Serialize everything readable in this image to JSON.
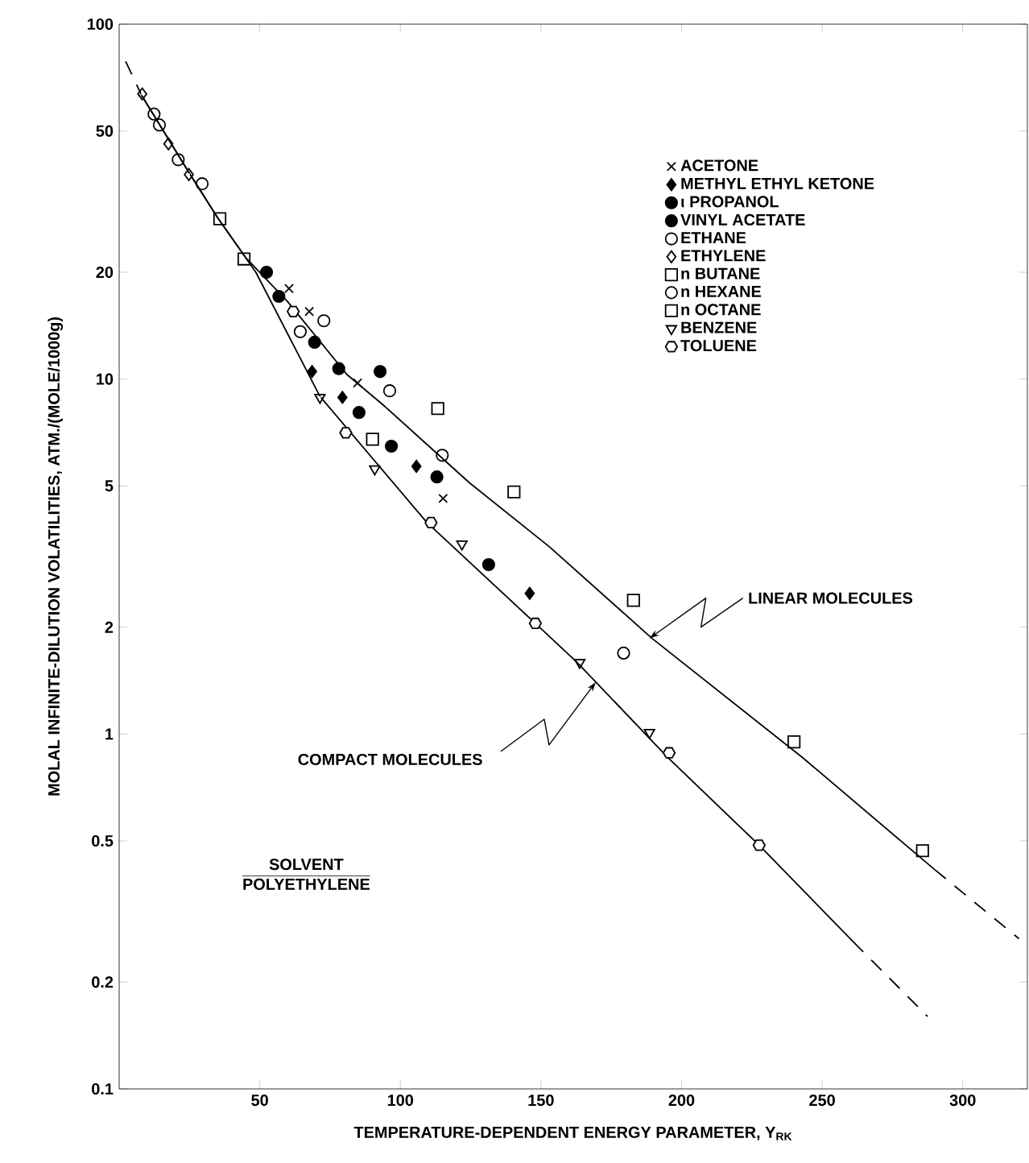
{
  "chart_data": {
    "type": "scatter",
    "xlabel": "TEMPERATURE-DEPENDENT ENERGY PARAMETER, Y$_{RK}$",
    "ylabel": "MOLAL INFINITE-DILUTION VOLATILITIES, ATM./(MOLE/1000g)",
    "log": "y",
    "xlim": [
      0,
      323
    ],
    "ylim": [
      0.1,
      100
    ],
    "xticks": [
      50,
      100,
      150,
      200,
      250,
      300
    ],
    "yticks": [
      0.1,
      0.2,
      0.5,
      1,
      2,
      5,
      10,
      20,
      50,
      100
    ],
    "legend": "top right",
    "series": [
      {
        "name": "ACETONE",
        "color": "#000000",
        "marker": "cross",
        "x": [
          60.4,
          67.6,
          84.8,
          115.2
        ],
        "values": [
          18,
          15.5,
          9.75,
          4.61
        ]
      },
      {
        "name": "METHYL ETHYL KETONE",
        "color": "#000000",
        "marker": "diamond",
        "x": [
          68.6,
          79.4,
          105.7,
          146
        ],
        "values": [
          10.5,
          8.88,
          5.68,
          2.49
        ]
      },
      {
        "name": "ι PROPANOL",
        "color": "#000000",
        "marker": "circle",
        "x": [
          92.8,
          113
        ],
        "values": [
          10.5,
          5.3
        ]
      },
      {
        "name": "VINYL ACETATE",
        "color": "#000000",
        "marker": "circle",
        "x": [
          52.4,
          56.8,
          69.5,
          78.1,
          85.3,
          96.8,
          131.4
        ],
        "values": [
          20,
          17.1,
          12.7,
          10.7,
          8.05,
          6.47,
          3.0
        ]
      },
      {
        "name": "ETHANE",
        "color": "#000000",
        "marker": "circle",
        "x": [
          12.4,
          14.3,
          21,
          29.5,
          64.4
        ],
        "values": [
          55.8,
          52,
          41.5,
          35.5,
          13.6
        ]
      },
      {
        "name": "ETHYLENE",
        "color": "#000000",
        "marker": "diamond",
        "x": [
          8.2,
          17.5,
          24.8
        ],
        "values": [
          63.6,
          46,
          37.7
        ]
      },
      {
        "name": "n BUTANE",
        "color": "#000000",
        "marker": "square",
        "x": [
          35.8,
          44.4,
          90.1
        ],
        "values": [
          28.3,
          21.8,
          6.77
        ]
      },
      {
        "name": "n HEXANE",
        "color": "#000000",
        "marker": "circle",
        "x": [
          72.8,
          96.2,
          114.9,
          179.4
        ],
        "values": [
          14.6,
          9.27,
          6.1,
          1.69
        ]
      },
      {
        "name": "n OCTANE",
        "color": "#000000",
        "marker": "square",
        "x": [
          113.3,
          140.4,
          182.9,
          240,
          285.7
        ],
        "values": [
          8.26,
          4.81,
          2.38,
          0.95,
          0.469
        ]
      },
      {
        "name": "BENZENE",
        "color": "#000000",
        "marker": "triangle",
        "x": [
          71.4,
          90.9,
          121.9,
          163.8,
          188.6
        ],
        "values": [
          8.88,
          5.58,
          3.43,
          1.59,
          1.01
        ]
      },
      {
        "name": "TOLUENE",
        "color": "#000000",
        "x": [
          61.9,
          80.6,
          110.9,
          148,
          195.6,
          227.6
        ],
        "values": [
          15.5,
          7.06,
          3.94,
          2.05,
          0.885,
          0.486
        ]
      },
      {
        "type": "line",
        "color": "#000000",
        "line_style": "dashed",
        "x": [
          2.3,
          8
        ],
        "values": [
          78.6,
          63
        ]
      },
      {
        "type": "line",
        "color": "#000000",
        "line_style": "solid",
        "x": [
          8,
          25,
          35,
          45,
          60,
          81,
          94.3,
          124.6,
          153,
          189.5,
          242.9,
          290
        ],
        "values": [
          63,
          38,
          28.5,
          22,
          16.5,
          10.3,
          8.4,
          5.1,
          3.37,
          1.86,
          0.86,
          0.415
        ]
      },
      {
        "type": "line",
        "color": "#000000",
        "line_style": "dashed",
        "x": [
          290,
          320
        ],
        "values": [
          0.415,
          0.265
        ]
      },
      {
        "type": "line",
        "color": "#000000",
        "line_style": "solid",
        "x": [
          8,
          25,
          35,
          48.6,
          71.4,
          109.5,
          148,
          162.9,
          195,
          227.6,
          261
        ],
        "values": [
          63,
          38,
          28.5,
          20,
          8.94,
          3.94,
          2.05,
          1.59,
          0.86,
          0.486,
          0.26
        ]
      },
      {
        "type": "line",
        "color": "#000000",
        "line_style": "dashed",
        "x": [
          261,
          287.5
        ],
        "values": [
          0.26,
          0.16
        ]
      }
    ],
    "annotations": [
      {
        "text": "LINEAR MOLECULES",
        "x": 188.6,
        "y": 1.86
      },
      {
        "text": "COMPACT MOLECULES",
        "x": 169.5,
        "y": 1.4
      },
      "SOLVENT",
      "POLYETHYLENE"
    ]
  }
}
